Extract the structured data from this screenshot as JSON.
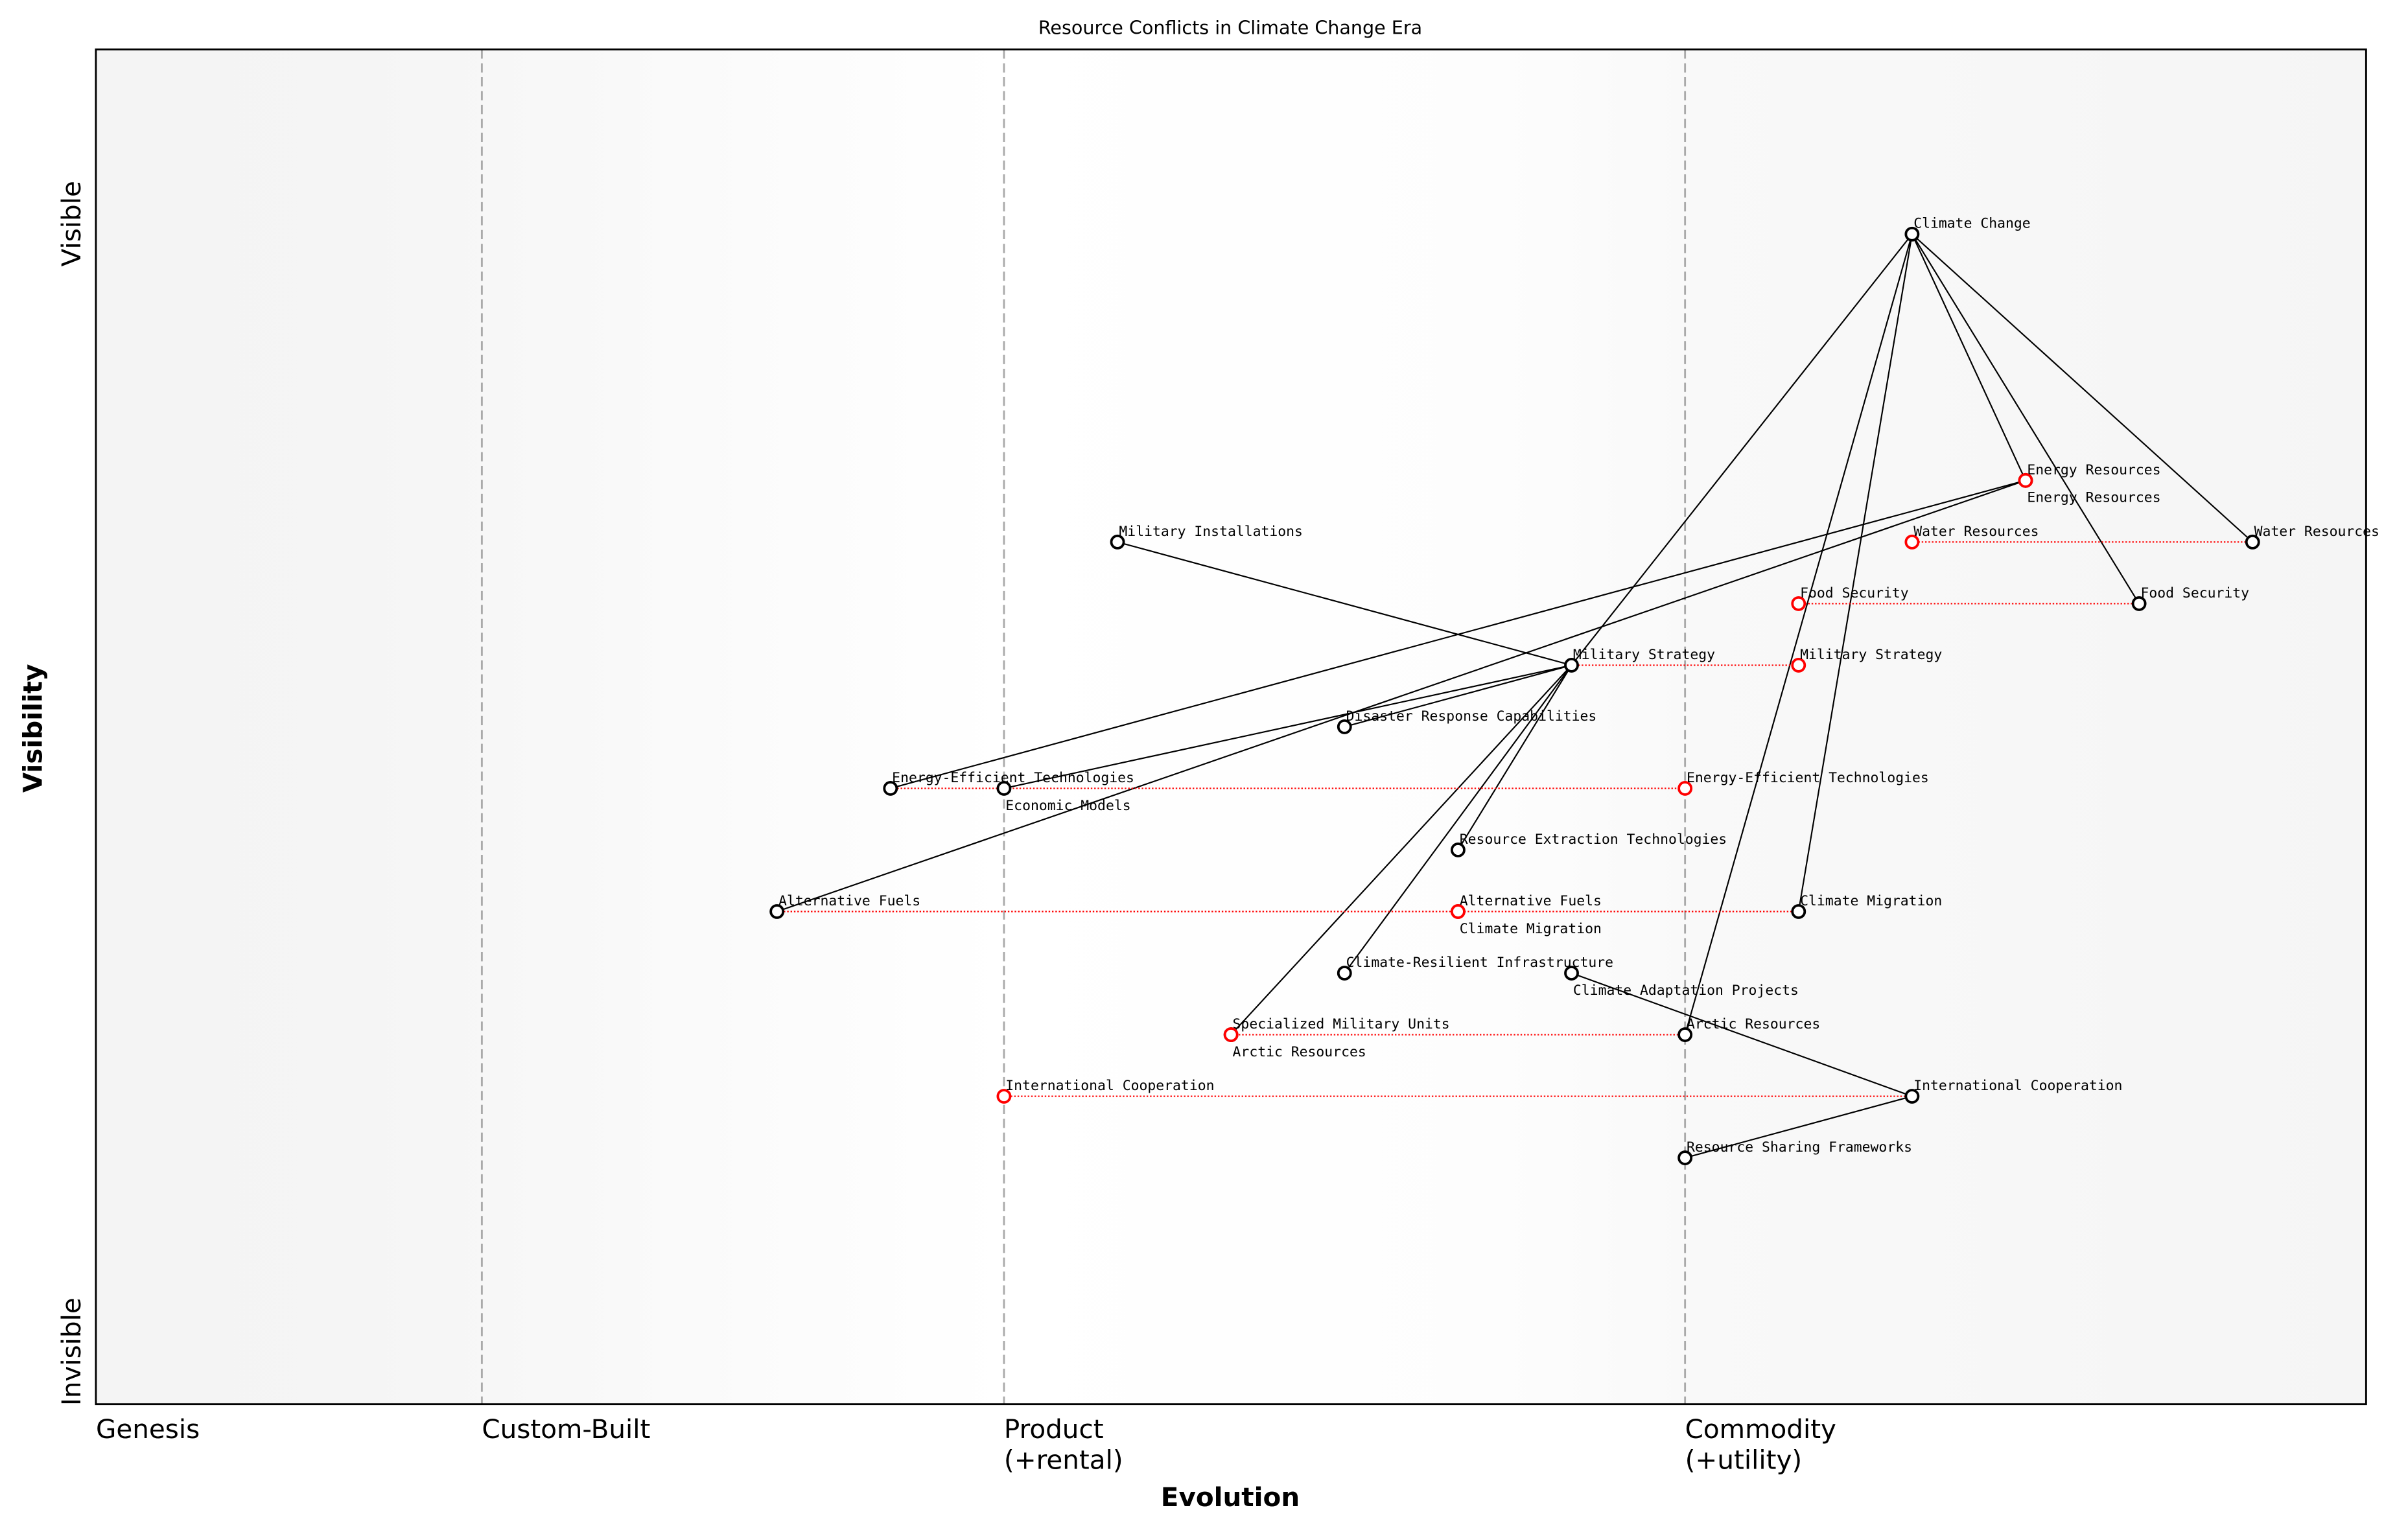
{
  "title": "Resource Conflicts in Climate Change Era",
  "xlabel": "Evolution",
  "ylabel": "Visibility",
  "y_ticks": {
    "top": "Visible",
    "bottom": "Invisible"
  },
  "stages": [
    {
      "label": "Genesis",
      "sub": "",
      "at": 0.0
    },
    {
      "label": "Custom-Built",
      "sub": "",
      "at": 0.17
    },
    {
      "label": "Product",
      "sub": "(+rental)",
      "at": 0.4
    },
    {
      "label": "Commodity",
      "sub": "(+utility)",
      "at": 0.7
    }
  ],
  "colors": {
    "node": "#000000",
    "evolved": "#ff0000",
    "stage_divider": "#aaaaaa",
    "background_edge": "#f5f5f5"
  },
  "components": [
    {
      "name": "Climate Change",
      "evolution": 0.8,
      "visibility": 0.95
    },
    {
      "name": "Energy Resources",
      "evolution": 0.85,
      "visibility": 0.75,
      "evolves_to": 0.85
    },
    {
      "name": "Water Resources",
      "evolution": 0.95,
      "visibility": 0.7,
      "evolves_to": 0.8
    },
    {
      "name": "Food Security",
      "evolution": 0.9,
      "visibility": 0.65,
      "evolves_to": 0.75
    },
    {
      "name": "Military Installations",
      "evolution": 0.45,
      "visibility": 0.7
    },
    {
      "name": "Military Strategy",
      "evolution": 0.65,
      "visibility": 0.6,
      "evolves_to": 0.75
    },
    {
      "name": "Disaster Response Capabilities",
      "evolution": 0.55,
      "visibility": 0.55
    },
    {
      "name": "Energy-Efficient Technologies",
      "evolution": 0.35,
      "visibility": 0.5,
      "evolves_to": 0.7
    },
    {
      "name": "Economic Models",
      "evolution": 0.4,
      "visibility": 0.5
    },
    {
      "name": "Resource Extraction Technologies",
      "evolution": 0.6,
      "visibility": 0.45
    },
    {
      "name": "Alternative Fuels",
      "evolution": 0.3,
      "visibility": 0.4,
      "evolves_to": 0.6
    },
    {
      "name": "Climate Migration",
      "evolution": 0.75,
      "visibility": 0.4,
      "evolves_to": 0.6
    },
    {
      "name": "Climate-Resilient Infrastructure",
      "evolution": 0.55,
      "visibility": 0.35
    },
    {
      "name": "Climate Adaptation Projects",
      "evolution": 0.65,
      "visibility": 0.35
    },
    {
      "name": "Specialized Military Units",
      "evolution": 0.5,
      "visibility": 0.3
    },
    {
      "name": "Arctic Resources",
      "evolution": 0.7,
      "visibility": 0.3,
      "evolves_to": 0.5
    },
    {
      "name": "International Cooperation",
      "evolution": 0.8,
      "visibility": 0.25,
      "evolves_to": 0.4
    },
    {
      "name": "Resource Sharing Frameworks",
      "evolution": 0.7,
      "visibility": 0.2
    }
  ],
  "links": [
    [
      "Climate Change",
      "Energy Resources"
    ],
    [
      "Climate Change",
      "Water Resources"
    ],
    [
      "Climate Change",
      "Food Security"
    ],
    [
      "Climate Change",
      "Military Strategy"
    ],
    [
      "Climate Change",
      "Climate Migration"
    ],
    [
      "Climate Change",
      "Arctic Resources"
    ],
    [
      "Energy Resources",
      "Energy-Efficient Technologies"
    ],
    [
      "Energy Resources",
      "Alternative Fuels"
    ],
    [
      "Military Installations",
      "Military Strategy"
    ],
    [
      "Military Strategy",
      "Disaster Response Capabilities"
    ],
    [
      "Military Strategy",
      "Economic Models"
    ],
    [
      "Military Strategy",
      "Resource Extraction Technologies"
    ],
    [
      "Military Strategy",
      "Climate-Resilient Infrastructure"
    ],
    [
      "Military Strategy",
      "Specialized Military Units"
    ],
    [
      "Climate Adaptation Projects",
      "International Cooperation"
    ],
    [
      "Resource Sharing Frameworks",
      "International Cooperation"
    ]
  ]
}
